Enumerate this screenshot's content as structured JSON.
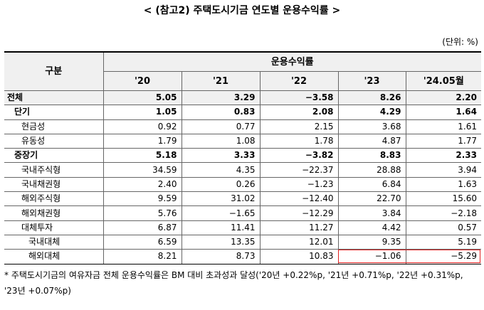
{
  "header": {
    "title": "< (참고2) 주택도시기금 연도별 운용수익률 >",
    "unit": "(단위: %)"
  },
  "table": {
    "row_header": "구분",
    "group_header": "운용수익률",
    "columns": [
      "'20",
      "'21",
      "'22",
      "'23",
      "'24.05월"
    ],
    "rows": [
      {
        "label": "전체",
        "values": [
          "5.05",
          "3.29",
          "−3.58",
          "8.26",
          "2.20"
        ]
      },
      {
        "label": "단기",
        "values": [
          "1.05",
          "0.83",
          "2.08",
          "4.29",
          "1.64"
        ]
      },
      {
        "label": "현금성",
        "values": [
          "0.92",
          "0.77",
          "2.15",
          "3.68",
          "1.61"
        ]
      },
      {
        "label": "유동성",
        "values": [
          "1.79",
          "1.08",
          "1.78",
          "4.87",
          "1.77"
        ]
      },
      {
        "label": "중장기",
        "values": [
          "5.18",
          "3.33",
          "−3.82",
          "8.83",
          "2.33"
        ]
      },
      {
        "label": "국내주식형",
        "values": [
          "34.59",
          "4.35",
          "−22.37",
          "28.88",
          "3.94"
        ]
      },
      {
        "label": "국내채권형",
        "values": [
          "2.40",
          "0.26",
          "−1.23",
          "6.84",
          "1.63"
        ]
      },
      {
        "label": "해외주식형",
        "values": [
          "9.59",
          "31.02",
          "−12.40",
          "22.70",
          "15.60"
        ]
      },
      {
        "label": "해외채권형",
        "values": [
          "5.76",
          "−1.65",
          "−12.29",
          "3.84",
          "−2.18"
        ]
      },
      {
        "label": "대체투자",
        "values": [
          "6.87",
          "11.41",
          "11.27",
          "4.42",
          "0.57"
        ]
      },
      {
        "label": "국내대체",
        "values": [
          "6.59",
          "13.35",
          "12.01",
          "9.35",
          "5.19"
        ]
      },
      {
        "label": "해외대체",
        "values": [
          "8.21",
          "8.73",
          "10.83",
          "−1.06",
          "−5.29"
        ]
      }
    ]
  },
  "footnote": "* 주택도시기금의 여유자금 전체 운용수익률은 BM 대비 초과성과 달성('20년 +0.22%p, '21년 +0.71%p, '22년 +0.31%p, '23년 +0.07%p)"
}
